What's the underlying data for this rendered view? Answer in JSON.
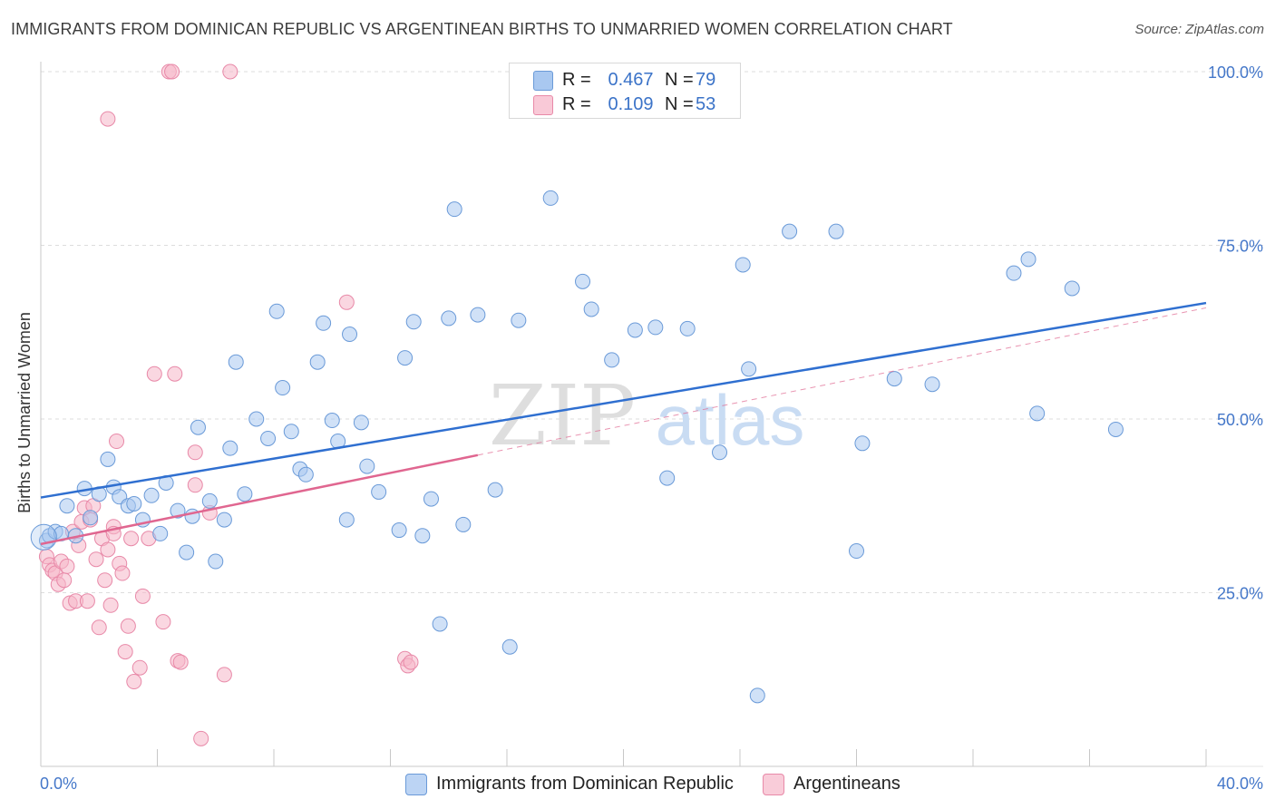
{
  "title": "IMMIGRANTS FROM DOMINICAN REPUBLIC VS ARGENTINEAN BIRTHS TO UNMARRIED WOMEN CORRELATION CHART",
  "source": "Source: ZipAtlas.com",
  "watermark": {
    "zip": "ZIP",
    "atlas": "atlas"
  },
  "legend": {
    "series1": {
      "r_label": "R =",
      "r_value": "0.467",
      "n_label": "N =",
      "n_value": "79"
    },
    "series2": {
      "r_label": "R =",
      "r_value": "0.109",
      "n_label": "N =",
      "n_value": "53"
    }
  },
  "bottom_legend": {
    "series1": "Immigrants from Dominican Republic",
    "series2": "Argentineans"
  },
  "colors": {
    "blue_fill": "#a9c8f0",
    "blue_stroke": "#6a9ad8",
    "blue_line": "#2f6fd0",
    "pink_fill": "#f6b7c9",
    "pink_stroke": "#e889a8",
    "pink_line": "#e06690",
    "axis_text": "#4477c9",
    "grid": "#dddddd"
  },
  "chart_data": {
    "type": "scatter",
    "title": "IMMIGRANTS FROM DOMINICAN REPUBLIC VS ARGENTINEAN BIRTHS TO UNMARRIED WOMEN CORRELATION CHART",
    "xlabel": "",
    "ylabel": "Births to Unmarried Women",
    "xlim": [
      0,
      40
    ],
    "ylim": [
      0,
      100
    ],
    "x_tick_labels": [
      "0.0%",
      "40.0%"
    ],
    "y_tick_labels": [
      {
        "value": 25,
        "label": "25.0%"
      },
      {
        "value": 50,
        "label": "50.0%"
      },
      {
        "value": 75,
        "label": "75.0%"
      },
      {
        "value": 100,
        "label": "100.0%"
      }
    ],
    "series": [
      {
        "name": "Immigrants from Dominican Republic",
        "color": "blue",
        "trend": {
          "x": [
            0,
            40
          ],
          "y": [
            38.7,
            66.7
          ]
        },
        "points": [
          [
            0.2,
            32.5
          ],
          [
            0.3,
            33.2
          ],
          [
            0.5,
            33.8
          ],
          [
            0.7,
            33.5
          ],
          [
            0.9,
            37.5
          ],
          [
            1.2,
            33.2
          ],
          [
            1.5,
            40.0
          ],
          [
            1.7,
            35.8
          ],
          [
            2.0,
            39.2
          ],
          [
            2.3,
            44.2
          ],
          [
            2.5,
            40.2
          ],
          [
            2.7,
            38.8
          ],
          [
            3.0,
            37.5
          ],
          [
            3.2,
            37.8
          ],
          [
            3.5,
            35.5
          ],
          [
            3.8,
            39.0
          ],
          [
            4.1,
            33.5
          ],
          [
            4.3,
            40.8
          ],
          [
            4.7,
            36.8
          ],
          [
            5.0,
            30.8
          ],
          [
            5.2,
            36.0
          ],
          [
            5.4,
            48.8
          ],
          [
            5.8,
            38.2
          ],
          [
            6.0,
            29.5
          ],
          [
            6.3,
            35.5
          ],
          [
            6.5,
            45.8
          ],
          [
            6.7,
            58.2
          ],
          [
            7.0,
            39.2
          ],
          [
            7.4,
            50.0
          ],
          [
            7.8,
            47.2
          ],
          [
            8.1,
            65.5
          ],
          [
            8.3,
            54.5
          ],
          [
            8.6,
            48.2
          ],
          [
            8.9,
            42.8
          ],
          [
            9.1,
            42.0
          ],
          [
            9.5,
            58.2
          ],
          [
            9.7,
            63.8
          ],
          [
            10.0,
            49.8
          ],
          [
            10.2,
            46.8
          ],
          [
            10.5,
            35.5
          ],
          [
            10.6,
            62.2
          ],
          [
            11.0,
            49.5
          ],
          [
            11.2,
            43.2
          ],
          [
            11.6,
            39.5
          ],
          [
            12.3,
            34.0
          ],
          [
            12.5,
            58.8
          ],
          [
            12.8,
            64.0
          ],
          [
            13.1,
            33.2
          ],
          [
            13.4,
            38.5
          ],
          [
            13.7,
            20.5
          ],
          [
            14.0,
            64.5
          ],
          [
            14.2,
            80.2
          ],
          [
            14.5,
            34.8
          ],
          [
            15.0,
            65.0
          ],
          [
            15.6,
            39.8
          ],
          [
            16.1,
            17.2
          ],
          [
            16.4,
            64.2
          ],
          [
            17.5,
            81.8
          ],
          [
            18.6,
            69.8
          ],
          [
            18.9,
            65.8
          ],
          [
            19.6,
            58.5
          ],
          [
            20.4,
            62.8
          ],
          [
            21.1,
            63.2
          ],
          [
            21.5,
            41.5
          ],
          [
            22.2,
            63.0
          ],
          [
            23.3,
            45.2
          ],
          [
            24.1,
            72.2
          ],
          [
            24.3,
            57.2
          ],
          [
            24.6,
            10.2
          ],
          [
            25.7,
            77.0
          ],
          [
            27.3,
            77.0
          ],
          [
            28.0,
            31.0
          ],
          [
            28.2,
            46.5
          ],
          [
            29.3,
            55.8
          ],
          [
            30.6,
            55.0
          ],
          [
            33.4,
            71.0
          ],
          [
            33.9,
            73.0
          ],
          [
            34.2,
            50.8
          ],
          [
            35.4,
            68.8
          ],
          [
            36.9,
            48.5
          ]
        ]
      },
      {
        "name": "Argentineans",
        "color": "pink",
        "trend": {
          "x": [
            0,
            15
          ],
          "y": [
            32.0,
            44.8
          ]
        },
        "trend_dashed": {
          "x": [
            15,
            40
          ],
          "y": [
            44.8,
            66.0
          ]
        },
        "points": [
          [
            0.2,
            30.2
          ],
          [
            0.3,
            29.0
          ],
          [
            0.4,
            28.2
          ],
          [
            0.5,
            27.8
          ],
          [
            0.6,
            26.2
          ],
          [
            0.7,
            29.5
          ],
          [
            0.8,
            26.8
          ],
          [
            0.9,
            28.8
          ],
          [
            1.0,
            23.5
          ],
          [
            1.1,
            33.8
          ],
          [
            1.2,
            23.8
          ],
          [
            1.3,
            31.8
          ],
          [
            1.4,
            35.2
          ],
          [
            1.5,
            37.2
          ],
          [
            1.6,
            23.8
          ],
          [
            1.7,
            35.5
          ],
          [
            1.8,
            37.5
          ],
          [
            1.9,
            29.8
          ],
          [
            2.0,
            20.0
          ],
          [
            2.1,
            32.8
          ],
          [
            2.2,
            26.8
          ],
          [
            2.3,
            31.2
          ],
          [
            2.4,
            23.2
          ],
          [
            2.5,
            34.5
          ],
          [
            2.5,
            33.5
          ],
          [
            2.6,
            46.8
          ],
          [
            2.7,
            29.2
          ],
          [
            2.8,
            27.8
          ],
          [
            2.9,
            16.5
          ],
          [
            3.0,
            20.2
          ],
          [
            3.1,
            32.8
          ],
          [
            3.2,
            12.2
          ],
          [
            3.4,
            14.2
          ],
          [
            3.5,
            24.5
          ],
          [
            3.7,
            32.8
          ],
          [
            3.9,
            56.5
          ],
          [
            4.2,
            20.8
          ],
          [
            4.4,
            100
          ],
          [
            4.5,
            100
          ],
          [
            4.6,
            56.5
          ],
          [
            4.7,
            15.2
          ],
          [
            5.3,
            40.5
          ],
          [
            5.3,
            45.2
          ],
          [
            5.5,
            4.0
          ],
          [
            5.8,
            36.5
          ],
          [
            6.3,
            13.2
          ],
          [
            6.5,
            100
          ],
          [
            10.5,
            66.8
          ],
          [
            12.5,
            15.5
          ],
          [
            12.6,
            14.5
          ],
          [
            12.7,
            15.0
          ],
          [
            2.3,
            93.2
          ],
          [
            4.8,
            15.0
          ]
        ]
      }
    ]
  }
}
